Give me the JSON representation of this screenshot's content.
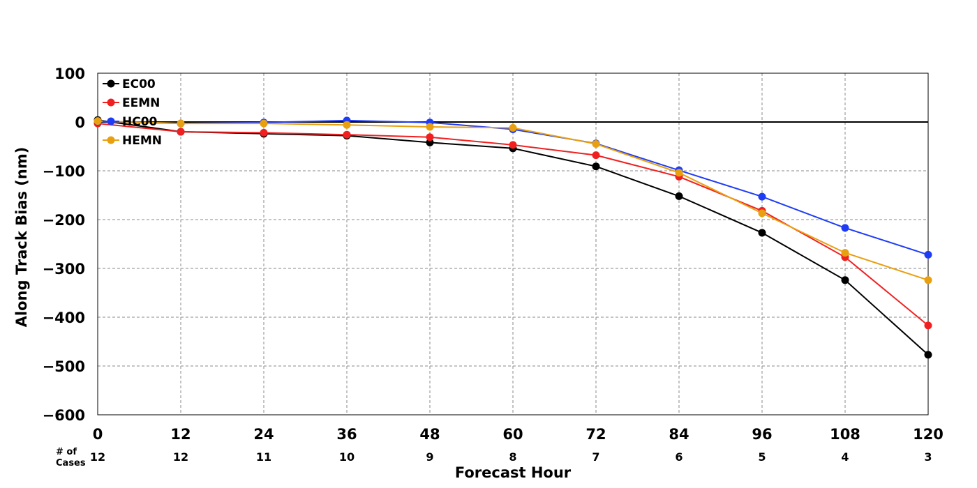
{
  "chart_data": {
    "type": "line",
    "xlabel": "Forecast Hour",
    "ylabel": "Along Track Bias (nm)",
    "x": [
      0,
      12,
      24,
      36,
      48,
      60,
      72,
      84,
      96,
      108,
      120
    ],
    "xlim": [
      0,
      120
    ],
    "ylim": [
      -600,
      100
    ],
    "yticks": [
      100,
      0,
      -100,
      -200,
      -300,
      -400,
      -500,
      -600
    ],
    "ytick_labels": [
      "100",
      "0",
      "−100",
      "−200",
      "−300",
      "−400",
      "−500",
      "−600"
    ],
    "grid": true,
    "zero_line": true,
    "legend_position": "top-left",
    "cases_label": [
      "# of",
      "Cases"
    ],
    "cases": [
      12,
      12,
      11,
      10,
      9,
      8,
      7,
      6,
      5,
      4,
      3
    ],
    "series": [
      {
        "name": "EC00",
        "color": "#000000",
        "values": [
          4,
          -20,
          -24,
          -28,
          -42,
          -54,
          -91,
          -152,
          -227,
          -324,
          -477
        ]
      },
      {
        "name": "EEMN",
        "color": "#f02020",
        "values": [
          -3,
          -20,
          -22,
          -26,
          -31,
          -47,
          -68,
          -112,
          -182,
          -277,
          -417
        ]
      },
      {
        "name": "HC00",
        "color": "#1f3cf5",
        "values": [
          1,
          -3,
          -1,
          3,
          -1,
          -15,
          -44,
          -99,
          -153,
          -217,
          -272
        ]
      },
      {
        "name": "HEMN",
        "color": "#e8a010",
        "values": [
          2,
          -3,
          -3,
          -6,
          -10,
          -12,
          -45,
          -104,
          -187,
          -268,
          -324
        ]
      }
    ]
  }
}
